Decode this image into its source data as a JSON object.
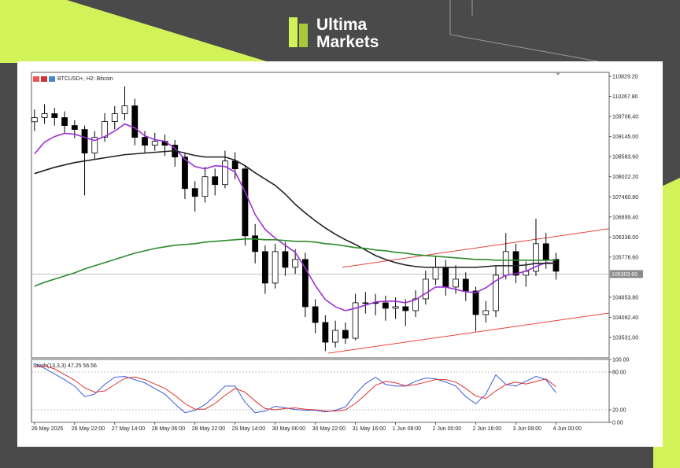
{
  "header": {
    "brand_line1": "Ultima",
    "brand_line2": "Markets"
  },
  "chart_data": [
    {
      "type": "candlestick",
      "title": "BTCUSD+, H2: Bitcoin",
      "xlim": [
        -0.3,
        57.3
      ],
      "ylim": [
        102960,
        110940
      ],
      "yticks": [
        {
          "value": 110829.2,
          "label": "110829.20"
        },
        {
          "value": 110267.8,
          "label": "110267.80"
        },
        {
          "value": 109706.4,
          "label": "109706.40"
        },
        {
          "value": 109145,
          "label": "109145.00"
        },
        {
          "value": 108583.6,
          "label": "108583.60"
        },
        {
          "value": 108022.2,
          "label": "108022.20"
        },
        {
          "value": 107460.8,
          "label": "107460.80"
        },
        {
          "value": 106899.4,
          "label": "106899.40"
        },
        {
          "value": 106338,
          "label": "106338.00"
        },
        {
          "value": 105776.6,
          "label": "105776.60"
        },
        {
          "value": 104653.8,
          "label": "104653.80"
        },
        {
          "value": 104092.4,
          "label": "104092.40"
        },
        {
          "value": 103531,
          "label": "103531.00"
        }
      ],
      "open": [
        109560,
        109675,
        109785,
        109675,
        109454,
        109344,
        108684,
        109124,
        109564,
        109785,
        110005,
        109124,
        108904,
        109014,
        108904,
        108574,
        107693,
        107473,
        108023,
        107803,
        108463,
        108243,
        106372,
        105931,
        105050,
        105931,
        105491,
        105711,
        104390,
        103949,
        103399,
        103729,
        103509,
        104500,
        104500,
        104500,
        104346,
        104390,
        104280,
        104610,
        105160,
        105491,
        104940,
        105160,
        104830,
        104170,
        104280,
        105271,
        105931,
        105271,
        105381,
        106151,
        105711
      ],
      "high": [
        109900,
        110050,
        109950,
        109850,
        109600,
        109450,
        109300,
        109800,
        110000,
        110550,
        110200,
        109300,
        109250,
        109200,
        109050,
        108700,
        107900,
        108300,
        108250,
        108750,
        108700,
        108350,
        106700,
        106100,
        106150,
        106200,
        106000,
        105900,
        104600,
        104150,
        104000,
        103950,
        104750,
        104800,
        104750,
        104700,
        104650,
        104600,
        104850,
        105400,
        105800,
        105700,
        105550,
        105350,
        104950,
        104550,
        105550,
        106450,
        106150,
        105650,
        106850,
        106450,
        105900
      ],
      "low": [
        109300,
        109500,
        109450,
        109250,
        109100,
        107500,
        108500,
        109000,
        109350,
        109600,
        108900,
        108700,
        108750,
        108600,
        108300,
        107400,
        107050,
        107300,
        107500,
        107700,
        107950,
        106100,
        105600,
        104750,
        104900,
        105250,
        105300,
        104100,
        103650,
        103150,
        103250,
        103350,
        103450,
        104200,
        104150,
        104000,
        104050,
        103850,
        104100,
        104450,
        105000,
        104700,
        104750,
        104550,
        103700,
        103950,
        104100,
        105150,
        105050,
        104950,
        105250,
        105450,
        105150
      ],
      "close": [
        109675,
        109785,
        109675,
        109454,
        109344,
        108684,
        109124,
        109564,
        109785,
        110005,
        109124,
        108904,
        109014,
        108904,
        108574,
        107693,
        107473,
        108023,
        107803,
        108463,
        108243,
        106372,
        105931,
        105050,
        105931,
        105491,
        105711,
        104390,
        103949,
        103399,
        103729,
        103509,
        104500,
        104500,
        104500,
        104346,
        104390,
        104280,
        104610,
        105160,
        105491,
        104940,
        105160,
        104830,
        104170,
        104280,
        105271,
        105931,
        105271,
        105381,
        106151,
        105711,
        105381
      ],
      "overlays": [
        {
          "color": "#9b2fd6",
          "values": [
            108662,
            108992,
            109146,
            109234,
            109212,
            109124,
            109036,
            109146,
            109300,
            109498,
            109388,
            109168,
            109058,
            109014,
            108816,
            108508,
            108309,
            108243,
            108331,
            108309,
            108155,
            107605,
            106966,
            106548,
            106306,
            106107,
            105909,
            105469,
            104984,
            104588,
            104390,
            104280,
            104346,
            104434,
            104522,
            104544,
            104544,
            104500,
            104588,
            104764,
            104940,
            104940,
            104874,
            104808,
            104786,
            104918,
            105116,
            105271,
            105315,
            105381,
            105513,
            105623,
            105601
          ]
        },
        {
          "color": "#222222",
          "values": [
            108111,
            108199,
            108287,
            108353,
            108419,
            108463,
            108508,
            108552,
            108596,
            108640,
            108662,
            108684,
            108706,
            108728,
            108750,
            108684,
            108618,
            108574,
            108574,
            108574,
            108486,
            108331,
            108133,
            107957,
            107781,
            107539,
            107252,
            107010,
            106790,
            106592,
            106416,
            106261,
            106129,
            105975,
            105821,
            105711,
            105623,
            105557,
            105513,
            105491,
            105491,
            105491,
            105491,
            105491,
            105491,
            105513,
            105535,
            105535,
            105535,
            105557,
            105601,
            105601,
            105601
          ]
        },
        {
          "color": "#2e8b2e",
          "values": [
            104962,
            105072,
            105160,
            105249,
            105337,
            105447,
            105535,
            105623,
            105711,
            105799,
            105887,
            105953,
            106019,
            106063,
            106107,
            106129,
            106151,
            106195,
            106217,
            106239,
            106261,
            106284,
            106284,
            106261,
            106261,
            106239,
            106217,
            106217,
            106195,
            106151,
            106129,
            106085,
            106041,
            106019,
            105975,
            105953,
            105909,
            105887,
            105843,
            105821,
            105799,
            105777,
            105755,
            105733,
            105711,
            105711,
            105689,
            105689,
            105689,
            105689,
            105689,
            105689,
            105689
          ]
        }
      ],
      "trendlines": [
        {
          "color": "#e8413a",
          "x": [
            30.7,
            57.3
          ],
          "y": [
            105491,
            106570
          ]
        },
        {
          "color": "#e8413a",
          "x": [
            29.3,
            57.3
          ],
          "y": [
            103091,
            104214
          ]
        }
      ],
      "current_price": {
        "value": 105303.6,
        "label": "105303.60"
      }
    },
    {
      "type": "line",
      "title": "Stoch(13,3,3) 47.25 56.56",
      "xlim": [
        -0.3,
        57.3
      ],
      "ylim": [
        0,
        100
      ],
      "yticks": [
        {
          "value": 100,
          "label": "100.00"
        },
        {
          "value": 80,
          "label": "80.00"
        },
        {
          "value": 20,
          "label": "20.00"
        },
        {
          "value": 0,
          "label": "0.00"
        }
      ],
      "grid": "dashed",
      "xticks": [
        {
          "value": 0,
          "label": "26 May 2025"
        },
        {
          "value": 4,
          "label": "26 May 22:00"
        },
        {
          "value": 8,
          "label": "27 May 14:00"
        },
        {
          "value": 12,
          "label": "28 May 06:00"
        },
        {
          "value": 16,
          "label": "28 May 22:00"
        },
        {
          "value": 20,
          "label": "29 May 14:00"
        },
        {
          "value": 24,
          "label": "30 May 06:00"
        },
        {
          "value": 28,
          "label": "30 May 22:00"
        },
        {
          "value": 32,
          "label": "31 May 16:00"
        },
        {
          "value": 36,
          "label": "1 Jun 08:00"
        },
        {
          "value": 40,
          "label": "2 Jun 00:00"
        },
        {
          "value": 44,
          "label": "2 Jun 16:00"
        },
        {
          "value": 48,
          "label": "3 Jun 08:00"
        },
        {
          "value": 52,
          "label": "4 Jun 00:00"
        }
      ],
      "series": [
        {
          "color": "#3b5bdb",
          "values": [
            93.6,
            85.9,
            76.9,
            67.9,
            57.7,
            41.0,
            44.9,
            60.3,
            71.8,
            73.1,
            67.9,
            62.8,
            53.8,
            44.9,
            29.5,
            15.4,
            19.2,
            28.2,
            42.3,
            57.7,
            57.7,
            32.1,
            15.4,
            17.9,
            25.6,
            23.1,
            20.5,
            19.2,
            19.2,
            16.7,
            19.2,
            24.4,
            44.9,
            61.5,
            71.8,
            60.3,
            57.7,
            57.7,
            65.4,
            70.5,
            69.2,
            64.1,
            57.7,
            41.0,
            29.5,
            44.9,
            75.6,
            60.3,
            57.7,
            65.4,
            73.1,
            67.9,
            47.25
          ]
        },
        {
          "color": "#e03131",
          "values": [
            88,
            90,
            85,
            76,
            67,
            55,
            48,
            50,
            60,
            70,
            72,
            68,
            61,
            54,
            43,
            30,
            21,
            21,
            30,
            43,
            54,
            48,
            34,
            22,
            20,
            22,
            23,
            21,
            20,
            18,
            18,
            20,
            30,
            44,
            59,
            65,
            63,
            58,
            60,
            64,
            68,
            68,
            64,
            54,
            42,
            38,
            50,
            60,
            64,
            61,
            65,
            69,
            56.56
          ]
        }
      ]
    }
  ]
}
